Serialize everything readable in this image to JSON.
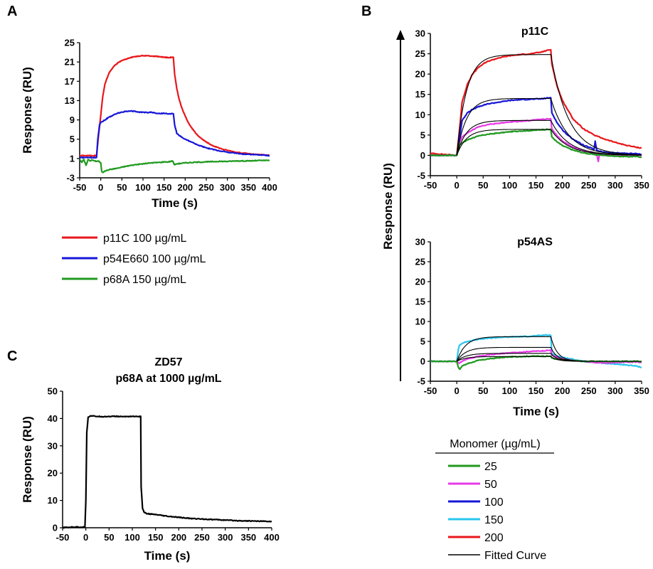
{
  "panel_labels": [
    "A",
    "B",
    "C"
  ],
  "colors": {
    "red": "#e8171b",
    "blue": "#1616d8",
    "green": "#1f9a1f",
    "magenta": "#e83ae8",
    "cyan": "#29c6ee",
    "black": "#000000"
  },
  "legend_a": [
    {
      "label": "p11C 100 µg/mL",
      "color": "#e8171b"
    },
    {
      "label": "p54E660 100 µg/mL",
      "color": "#1616d8"
    },
    {
      "label": "p68A 150 µg/mL",
      "color": "#1f9a1f"
    }
  ],
  "legend_b": {
    "title": "Monomer (µg/mL)",
    "items": [
      {
        "label": "25",
        "color": "#1f9a1f"
      },
      {
        "label": "50",
        "color": "#e83ae8"
      },
      {
        "label": "100",
        "color": "#1616d8"
      },
      {
        "label": "150",
        "color": "#29c6ee"
      },
      {
        "label": "200",
        "color": "#e8171b"
      },
      {
        "label": "Fitted Curve",
        "color": "#000000"
      }
    ]
  },
  "chart_data": [
    {
      "id": "A",
      "type": "line",
      "xlabel": "Time (s)",
      "ylabel": "Response (RU)",
      "xlim": [
        -50,
        400
      ],
      "ylim": [
        -3,
        25
      ],
      "xticks": [
        -50,
        0,
        50,
        100,
        150,
        200,
        250,
        300,
        350,
        400
      ],
      "yticks": [
        -3,
        1,
        5,
        9,
        13,
        17,
        21,
        25
      ],
      "series": [
        {
          "name": "p11C 100 µg/mL",
          "color": "#e8171b",
          "x": [
            -55,
            -10,
            -5,
            0,
            5,
            10,
            20,
            30,
            40,
            50,
            60,
            70,
            80,
            90,
            100,
            110,
            120,
            130,
            140,
            150,
            160,
            170,
            172,
            175,
            180,
            185,
            190,
            200,
            210,
            220,
            230,
            240,
            250,
            260,
            270,
            280,
            290,
            300,
            310,
            320,
            330,
            340,
            350,
            360,
            370,
            380,
            390,
            400
          ],
          "y": [
            1.6,
            1.6,
            6,
            10,
            14,
            16.5,
            18.8,
            20,
            20.8,
            21.3,
            21.6,
            21.9,
            22.1,
            22.2,
            22.3,
            22.3,
            22.2,
            22.2,
            22.1,
            22.0,
            21.9,
            22.0,
            22.0,
            18.5,
            15.5,
            13.5,
            12.0,
            9.8,
            8.0,
            6.8,
            5.8,
            5.0,
            4.4,
            3.9,
            3.5,
            3.2,
            2.9,
            2.7,
            2.5,
            2.3,
            2.2,
            2.1,
            2.0,
            1.9,
            1.8,
            1.8,
            1.7,
            1.7
          ]
        },
        {
          "name": "p54E660 100 µg/mL",
          "color": "#1616d8",
          "x": [
            -55,
            -10,
            -7,
            -3,
            0,
            10,
            20,
            30,
            40,
            50,
            60,
            70,
            80,
            90,
            100,
            110,
            120,
            130,
            140,
            150,
            160,
            170,
            172,
            175,
            180,
            190,
            200,
            210,
            220,
            230,
            240,
            250,
            260,
            270,
            280,
            290,
            300,
            310,
            320,
            330,
            340,
            350,
            360,
            370,
            380,
            390,
            400
          ],
          "y": [
            1.2,
            1.2,
            5,
            8,
            8.5,
            9.0,
            9.6,
            10.0,
            10.4,
            10.6,
            10.8,
            10.8,
            10.8,
            10.6,
            10.6,
            10.5,
            10.6,
            10.4,
            10.3,
            10.4,
            10.2,
            10.3,
            10.3,
            8,
            6.2,
            5.5,
            5.0,
            4.6,
            4.2,
            3.8,
            3.5,
            3.2,
            3.0,
            2.8,
            2.6,
            2.5,
            2.3,
            2.2,
            2.1,
            2.0,
            1.9,
            1.9,
            1.8,
            1.8,
            1.7,
            1.7,
            1.6
          ]
        },
        {
          "name": "p68A 150 µg/mL",
          "color": "#1f9a1f",
          "x": [
            -55,
            -45,
            -40,
            -35,
            -30,
            -25,
            -20,
            -15,
            -10,
            -5,
            0,
            2,
            5,
            10,
            20,
            40,
            60,
            80,
            100,
            120,
            140,
            150,
            160,
            170,
            175,
            180,
            200,
            220,
            250,
            280,
            300,
            320,
            350,
            380,
            400
          ],
          "y": [
            1.5,
            0.2,
            0.8,
            -0.4,
            0.8,
            0.5,
            0.7,
            0.5,
            0.4,
            0.5,
            0.1,
            -1.6,
            -1.9,
            -1.6,
            -1.3,
            -1.0,
            -0.6,
            -0.3,
            -0.1,
            0.1,
            0.2,
            0.3,
            0.3,
            0.5,
            -0.3,
            -0.1,
            0.1,
            0.2,
            0.3,
            0.4,
            0.4,
            0.5,
            0.5,
            0.6,
            0.6
          ]
        }
      ]
    },
    {
      "id": "B-top",
      "type": "line",
      "title": "p11C",
      "xlabel": "",
      "ylabel": "Response (RU)",
      "xlim": [
        -50,
        350
      ],
      "ylim": [
        -5,
        30
      ],
      "xticks": [
        -50,
        0,
        50,
        100,
        150,
        200,
        250,
        300,
        350
      ],
      "yticks": [
        -5,
        0,
        5,
        10,
        15,
        20,
        25,
        30
      ],
      "series": [
        {
          "name": "200",
          "color": "#e8171b",
          "x": [
            -50,
            0,
            5,
            10,
            20,
            30,
            40,
            50,
            60,
            80,
            100,
            120,
            140,
            160,
            170,
            178,
            180,
            190,
            200,
            220,
            240,
            260,
            280,
            300,
            320,
            340,
            350
          ],
          "y": [
            0.5,
            0,
            6,
            13,
            17.5,
            20,
            21.5,
            22.5,
            23.2,
            24,
            24.5,
            24.8,
            25.0,
            25.4,
            25.8,
            26,
            22.5,
            17,
            13.5,
            9,
            6.5,
            5,
            4,
            3.2,
            2.5,
            2.0,
            1.8
          ]
        },
        {
          "name": "100",
          "color": "#1616d8",
          "x": [
            -50,
            0,
            5,
            10,
            20,
            30,
            40,
            50,
            60,
            80,
            100,
            120,
            140,
            160,
            178,
            180,
            190,
            200,
            210,
            220,
            240,
            260,
            262,
            265,
            270,
            280,
            300,
            320,
            340,
            350
          ],
          "y": [
            0,
            0,
            4,
            8.5,
            10.5,
            11.3,
            11.9,
            12.3,
            12.7,
            13.1,
            13.5,
            13.7,
            13.8,
            13.9,
            14.2,
            10.5,
            8,
            6.3,
            5,
            4,
            2.5,
            1.5,
            3.5,
            1.2,
            1.0,
            0.8,
            0.6,
            0.5,
            0.4,
            0.3
          ]
        },
        {
          "name": "50",
          "color": "#e83ae8",
          "x": [
            -50,
            0,
            5,
            10,
            20,
            30,
            40,
            50,
            60,
            80,
            100,
            120,
            140,
            160,
            178,
            180,
            190,
            200,
            220,
            240,
            260,
            265,
            268,
            270,
            280,
            300,
            320,
            340,
            350
          ],
          "y": [
            0,
            0,
            3,
            4.5,
            5.5,
            6.3,
            6.9,
            7.3,
            7.6,
            7.9,
            8.2,
            8.4,
            8.6,
            8.9,
            9.0,
            6.5,
            4.8,
            3.5,
            2.0,
            1.2,
            0.6,
            0.2,
            -1.5,
            0.1,
            0,
            0,
            0,
            0,
            0
          ]
        },
        {
          "name": "25",
          "color": "#1f9a1f",
          "x": [
            -50,
            0,
            5,
            10,
            20,
            30,
            40,
            50,
            60,
            80,
            100,
            120,
            140,
            160,
            178,
            180,
            190,
            200,
            220,
            240,
            260,
            280,
            300,
            320,
            340,
            350
          ],
          "y": [
            0,
            0,
            2.5,
            3.0,
            3.8,
            4.3,
            4.7,
            5.0,
            5.2,
            5.5,
            5.8,
            6.0,
            6.1,
            6.3,
            6.4,
            4.5,
            3.3,
            2.4,
            1.3,
            0.6,
            0.2,
            0,
            -0.2,
            -0.3,
            -0.3,
            -0.4
          ]
        },
        {
          "name": "Fitted Curve",
          "color": "#000000",
          "fit_top": [
            24.8,
            14.0,
            8.6,
            6.4
          ],
          "fit_k_assoc": 0.055,
          "fit_k_dissoc": 0.03
        }
      ]
    },
    {
      "id": "B-bottom",
      "type": "line",
      "title": "p54AS",
      "xlabel": "Time (s)",
      "ylabel": "Response (RU)",
      "xlim": [
        -50,
        350
      ],
      "ylim": [
        -5,
        30
      ],
      "xticks": [
        -50,
        0,
        50,
        100,
        150,
        200,
        250,
        300,
        350
      ],
      "yticks": [
        -5,
        0,
        5,
        10,
        15,
        20,
        25,
        30
      ],
      "series": [
        {
          "name": "150",
          "color": "#29c6ee",
          "x": [
            -50,
            -20,
            -10,
            0,
            3,
            5,
            10,
            20,
            40,
            60,
            80,
            100,
            120,
            140,
            160,
            170,
            178,
            180,
            190,
            200,
            220,
            240,
            260,
            280,
            300,
            320,
            340,
            350
          ],
          "y": [
            0,
            0,
            0,
            0,
            3,
            4.0,
            4.5,
            5.0,
            5.5,
            5.8,
            6.0,
            6.1,
            6.2,
            6.3,
            6.5,
            6.6,
            6.5,
            2.0,
            1.3,
            1.0,
            0.5,
            0.0,
            -0.3,
            -0.5,
            -0.7,
            -0.9,
            -1.2,
            -1.5
          ]
        },
        {
          "name": "50",
          "color": "#e83ae8",
          "x": [
            -50,
            0,
            5,
            10,
            20,
            40,
            60,
            80,
            100,
            120,
            140,
            160,
            178,
            180,
            190,
            200,
            220,
            240,
            260,
            280,
            300,
            320,
            340,
            350
          ],
          "y": [
            0,
            0,
            -0.5,
            0,
            0.6,
            1.2,
            1.6,
            1.9,
            2.1,
            2.3,
            2.5,
            2.6,
            2.8,
            1.5,
            1.0,
            0.6,
            0.2,
            0,
            -0.3,
            -0.4,
            -0.3,
            -0.2,
            -0.2,
            -0.2
          ]
        },
        {
          "name": "25",
          "color": "#1f9a1f",
          "x": [
            -50,
            0,
            3,
            6,
            10,
            20,
            40,
            60,
            80,
            100,
            120,
            140,
            160,
            178,
            180,
            190,
            200,
            220,
            240,
            260,
            280,
            300,
            320,
            340,
            350
          ],
          "y": [
            0,
            0,
            -1.5,
            -2.0,
            -1.2,
            -0.6,
            0.2,
            0.6,
            0.9,
            1.1,
            1.2,
            1.3,
            1.3,
            1.3,
            0.8,
            0.5,
            0.3,
            0.2,
            0.0,
            0.0,
            0.0,
            0.0,
            0.0,
            0.0,
            0.0
          ]
        },
        {
          "name": "Fitted Curve",
          "color": "#000000",
          "fit_top": [
            6.2,
            3.5,
            2.0,
            1.2
          ],
          "fit_k_assoc": 0.06,
          "fit_k_dissoc": 0.08
        }
      ]
    },
    {
      "id": "C",
      "type": "line",
      "title": "ZD57\np68A at 1000 µg/mL",
      "title_lines": [
        "ZD57",
        "p68A at 1000 µg/mL"
      ],
      "xlabel": "Time (s)",
      "ylabel": "Response (RU)",
      "xlim": [
        -50,
        400
      ],
      "ylim": [
        0,
        50
      ],
      "xticks": [
        -50,
        0,
        50,
        100,
        150,
        200,
        250,
        300,
        350,
        400
      ],
      "yticks": [
        0,
        10,
        20,
        30,
        40,
        50
      ],
      "series": [
        {
          "name": "p68A 1000 µg/mL",
          "color": "#000000",
          "x": [
            -55,
            -20,
            -10,
            -2,
            0,
            2,
            5,
            10,
            20,
            40,
            60,
            80,
            100,
            110,
            118,
            119,
            122,
            125,
            130,
            150,
            175,
            200,
            225,
            250,
            275,
            300,
            325,
            350,
            375,
            400
          ],
          "y": [
            0,
            0.3,
            0.2,
            0.3,
            10,
            35,
            40.5,
            41,
            40.8,
            40.7,
            40.8,
            40.7,
            40.8,
            40.7,
            40.8,
            15,
            7,
            5.8,
            5.2,
            4.8,
            4.2,
            3.8,
            3.4,
            3.2,
            3.0,
            2.8,
            2.6,
            2.5,
            2.4,
            2.3
          ]
        }
      ]
    }
  ]
}
